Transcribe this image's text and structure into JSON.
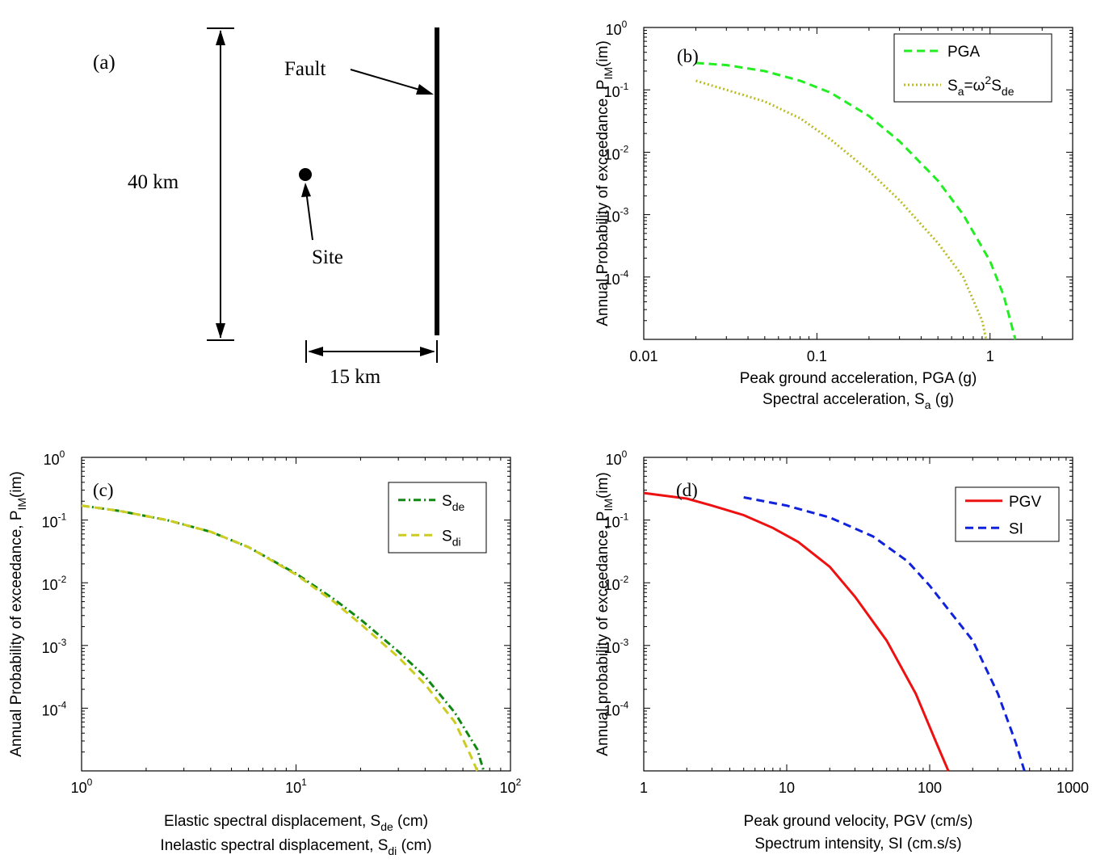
{
  "diagram": {
    "panel_label": "(a)",
    "fault_label": "Fault",
    "site_label": "Site",
    "length_label": "40 km",
    "distance_label": "15 km"
  },
  "chart_data": [
    {
      "id": "b",
      "type": "line",
      "panel_label": "(b)",
      "x_log": true,
      "y_log": true,
      "xlim": [
        0.01,
        3
      ],
      "ylim": [
        1e-05,
        1
      ],
      "x_ticks": [
        {
          "v": 0.01,
          "label": "0.01"
        },
        {
          "v": 0.1,
          "label": "0.1"
        },
        {
          "v": 1,
          "label": "1"
        }
      ],
      "y_ticks": [
        {
          "v": 1,
          "label": "10",
          "exp": "0"
        },
        {
          "v": 0.1,
          "label": "10",
          "exp": "-1"
        },
        {
          "v": 0.01,
          "label": "10",
          "exp": "-2"
        },
        {
          "v": 0.001,
          "label": "10",
          "exp": "-3"
        },
        {
          "v": 0.0001,
          "label": "10",
          "exp": "-4"
        }
      ],
      "ylabel": {
        "text": "Annual Probability of exceedance, P",
        "sub": "IM",
        "after": "(im)"
      },
      "xlabel": [
        {
          "text": "Peak ground acceleration, PGA (g)"
        },
        {
          "text": "Spectral acceleration, S",
          "sub": "a",
          "after": " (g)"
        }
      ],
      "legend": [
        "PGA",
        "Sa=ω2Sde"
      ],
      "series": [
        {
          "name": "PGA",
          "color": "#22ee22",
          "dash": "10,6",
          "width": 3,
          "x": [
            0.02,
            0.03,
            0.05,
            0.08,
            0.12,
            0.2,
            0.3,
            0.5,
            0.7,
            1.0,
            1.2,
            1.4
          ],
          "y": [
            0.27,
            0.25,
            0.2,
            0.14,
            0.09,
            0.038,
            0.015,
            0.0035,
            0.001,
            0.00018,
            5e-05,
            1e-05
          ]
        },
        {
          "name": "Sa=ω2Sde",
          "color": "#bbbb22",
          "dash": "2,3",
          "width": 3,
          "x": [
            0.02,
            0.03,
            0.05,
            0.08,
            0.12,
            0.2,
            0.3,
            0.5,
            0.7,
            0.9,
            0.95
          ],
          "y": [
            0.14,
            0.1,
            0.065,
            0.035,
            0.016,
            0.005,
            0.0017,
            0.00035,
            0.0001,
            2e-05,
            1e-05
          ]
        }
      ]
    },
    {
      "id": "c",
      "type": "line",
      "panel_label": "(c)",
      "x_log": true,
      "y_log": true,
      "xlim": [
        1,
        100
      ],
      "ylim": [
        1e-05,
        1
      ],
      "x_ticks": [
        {
          "v": 1,
          "label": "10",
          "exp": "0"
        },
        {
          "v": 10,
          "label": "10",
          "exp": "1"
        },
        {
          "v": 100,
          "label": "10",
          "exp": "2"
        }
      ],
      "y_ticks": [
        {
          "v": 1,
          "label": "10",
          "exp": "0"
        },
        {
          "v": 0.1,
          "label": "10",
          "exp": "-1"
        },
        {
          "v": 0.01,
          "label": "10",
          "exp": "-2"
        },
        {
          "v": 0.001,
          "label": "10",
          "exp": "-3"
        },
        {
          "v": 0.0001,
          "label": "10",
          "exp": "-4"
        }
      ],
      "ylabel": {
        "text": "Annual Probability of exceedance, P",
        "sub": "IM",
        "after": "(im)"
      },
      "xlabel": [
        {
          "text": "Elastic spectral displacement, S",
          "sub": "de",
          "after": " (cm)"
        },
        {
          "text": "Inelastic spectral displacement, S",
          "sub": "di",
          "after": " (cm)"
        }
      ],
      "legend": [
        "Sde",
        "Sdi"
      ],
      "series": [
        {
          "name": "Sde",
          "color": "#118811",
          "dash": "9,4,2,4",
          "width": 3,
          "x": [
            1,
            1.5,
            2.5,
            4,
            6,
            10,
            15,
            20,
            30,
            40,
            55,
            70,
            75
          ],
          "y": [
            0.17,
            0.14,
            0.1,
            0.065,
            0.037,
            0.014,
            0.0055,
            0.0026,
            0.0008,
            0.00032,
            8.5e-05,
            2.2e-05,
            1e-05
          ]
        },
        {
          "name": "Sdi",
          "color": "#cccc22",
          "dash": "10,6",
          "width": 3,
          "x": [
            1,
            1.5,
            2.5,
            4,
            6,
            10,
            15,
            20,
            30,
            40,
            55,
            65,
            70
          ],
          "y": [
            0.17,
            0.14,
            0.1,
            0.065,
            0.037,
            0.0135,
            0.005,
            0.0022,
            0.00065,
            0.00024,
            6e-05,
            1.8e-05,
            1e-05
          ]
        }
      ]
    },
    {
      "id": "d",
      "type": "line",
      "panel_label": "(d)",
      "x_log": true,
      "y_log": true,
      "xlim": [
        1,
        1000
      ],
      "ylim": [
        1e-05,
        1
      ],
      "x_ticks": [
        {
          "v": 1,
          "label": "1"
        },
        {
          "v": 10,
          "label": "10"
        },
        {
          "v": 100,
          "label": "100"
        },
        {
          "v": 1000,
          "label": "1000"
        }
      ],
      "y_ticks": [
        {
          "v": 1,
          "label": "10",
          "exp": "0"
        },
        {
          "v": 0.1,
          "label": "10",
          "exp": "-1"
        },
        {
          "v": 0.01,
          "label": "10",
          "exp": "-2"
        },
        {
          "v": 0.001,
          "label": "10",
          "exp": "-3"
        },
        {
          "v": 0.0001,
          "label": "10",
          "exp": "-4"
        }
      ],
      "ylabel": {
        "text": "Annual probability of exceedance, P",
        "sub": "IM",
        "after": "(im)"
      },
      "xlabel": [
        {
          "text": "Peak ground velocity, PGV (cm/s)"
        },
        {
          "text": "Spectrum intensity, SI (cm.s/s)"
        }
      ],
      "legend": [
        "PGV",
        "SI"
      ],
      "series": [
        {
          "name": "PGV",
          "color": "#ee1111",
          "dash": "",
          "width": 3,
          "x": [
            1,
            2,
            3,
            5,
            8,
            12,
            20,
            30,
            50,
            80,
            110,
            135
          ],
          "y": [
            0.27,
            0.22,
            0.17,
            0.12,
            0.075,
            0.045,
            0.018,
            0.006,
            0.0012,
            0.00017,
            3e-05,
            1e-05
          ]
        },
        {
          "name": "SI",
          "color": "#1122dd",
          "dash": "10,6",
          "width": 3,
          "x": [
            5,
            10,
            20,
            40,
            70,
            100,
            200,
            300,
            400,
            460
          ],
          "y": [
            0.23,
            0.17,
            0.11,
            0.055,
            0.022,
            0.009,
            0.0012,
            0.00017,
            2.8e-05,
            1e-05
          ]
        }
      ]
    }
  ]
}
